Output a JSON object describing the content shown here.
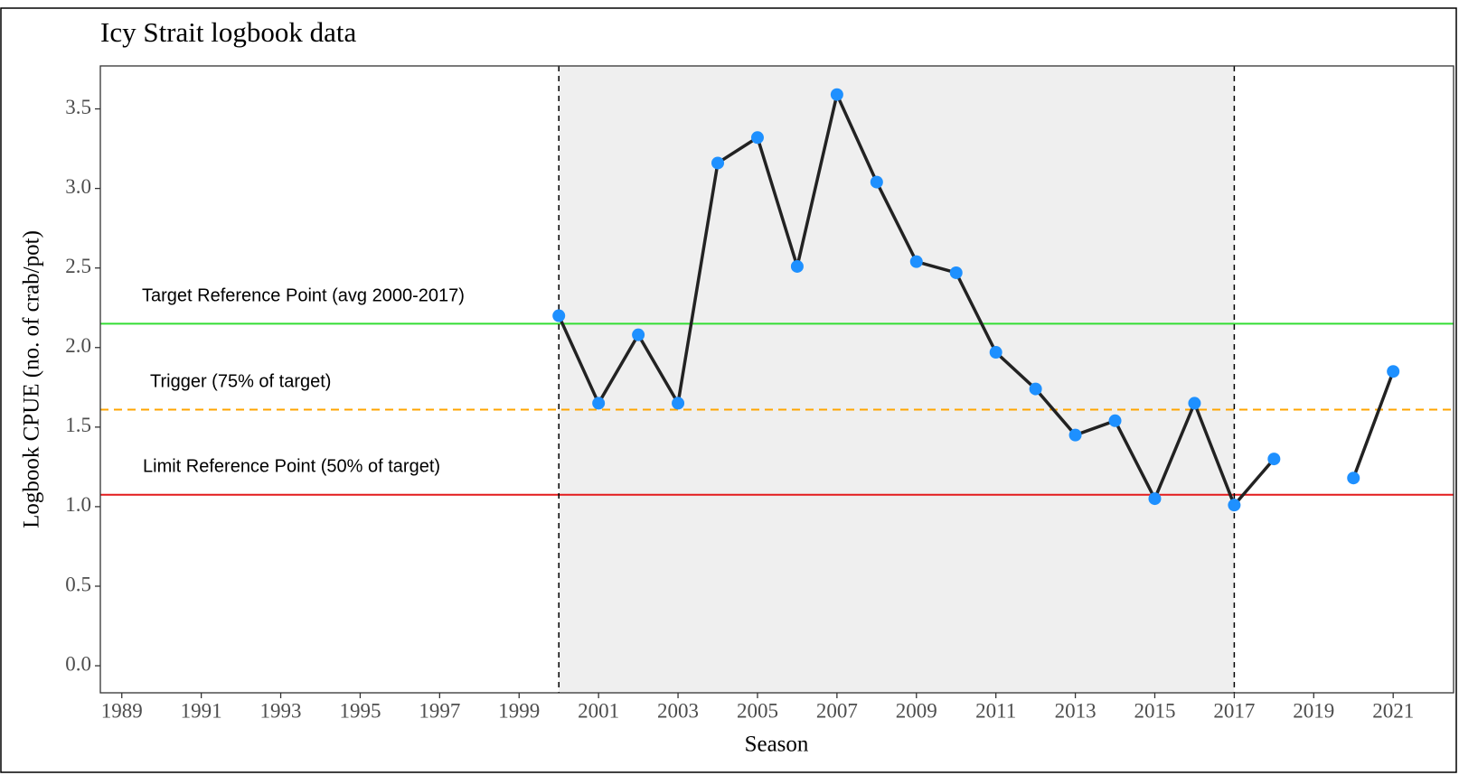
{
  "chart_data": {
    "type": "line",
    "title": "Icy Strait logbook data",
    "x_label": "Season",
    "y_label": "Logbook CPUE (no. of crab/pot)",
    "x": [
      2000,
      2001,
      2002,
      2003,
      2004,
      2005,
      2006,
      2007,
      2008,
      2009,
      2010,
      2011,
      2012,
      2013,
      2014,
      2015,
      2016,
      2017,
      2018,
      2019,
      2020,
      2021
    ],
    "series": [
      {
        "name": "Logbook CPUE",
        "color": "#1e90ff",
        "line_color": "#222222",
        "values": [
          2.2,
          1.65,
          2.08,
          1.65,
          3.16,
          3.32,
          2.51,
          3.59,
          3.04,
          2.54,
          2.47,
          1.97,
          1.74,
          1.45,
          1.54,
          1.05,
          1.65,
          1.01,
          1.3,
          null,
          1.18,
          1.85
        ]
      }
    ],
    "shaded_region": {
      "x": [
        2000,
        2017
      ],
      "color": "#efefef"
    },
    "vertical_lines": [
      2000,
      2017
    ],
    "reference_lines": [
      {
        "label": "Target Reference Point (avg 2000-2017)",
        "value": 2.15,
        "color": "#33dd33",
        "dashed": false
      },
      {
        "label": "Trigger (75% of target)",
        "value": 1.61,
        "color": "#ffa500",
        "dashed": true
      },
      {
        "label": "Limit Reference Point (50% of target)",
        "value": 1.075,
        "color": "#e31a1c",
        "dashed": false
      }
    ],
    "xlim": [
      1988.46,
      2022.52
    ],
    "ylim": [
      -0.17,
      3.77
    ],
    "xticks": [
      1989,
      1991,
      1993,
      1995,
      1997,
      1999,
      2001,
      2003,
      2005,
      2007,
      2009,
      2011,
      2013,
      2015,
      2017,
      2019,
      2021
    ],
    "yticks": [
      {
        "value": 0,
        "label": "0.0"
      },
      0.5,
      {
        "value": 1,
        "label": "1.0"
      },
      1.5,
      {
        "value": 2,
        "label": "2.0"
      },
      2.5,
      {
        "value": 3,
        "label": "3.0"
      },
      3.5
    ]
  }
}
